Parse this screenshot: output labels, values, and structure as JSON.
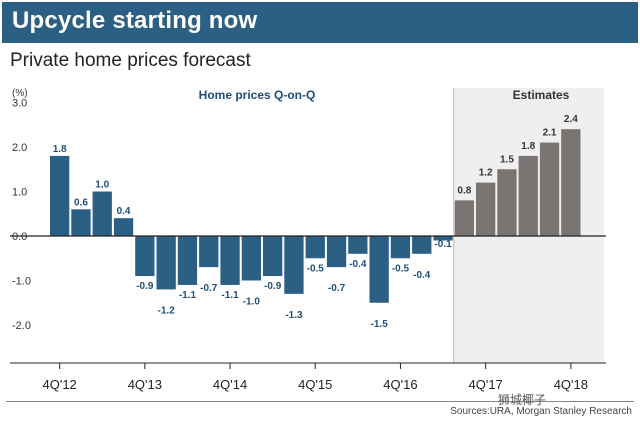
{
  "header": {
    "banner_title": "Upcycle starting now",
    "subtitle": "Private home prices forecast"
  },
  "footer": {
    "sources": "Sources:URA, Morgan Stanley Research",
    "watermark": "狮城椰子"
  },
  "colors": {
    "banner": "#2c5f84",
    "actual_bar": "#2c5f84",
    "actual_label": "#1f4e79",
    "estimate_bar": "#7a7573",
    "estimate_shade": "#efefef"
  },
  "chart_data": {
    "type": "bar",
    "y_unit_label": "(%)",
    "ylim": [
      -2.8,
      3.0
    ],
    "yticks": [
      {
        "value": 3.0,
        "label": "3.0"
      },
      {
        "value": 2.0,
        "label": "2.0"
      },
      {
        "value": 1.0,
        "label": "1.0"
      },
      {
        "value": 0.0,
        "label": "0.0"
      },
      {
        "value": -1.0,
        "label": "-1.0"
      },
      {
        "value": -2.0,
        "label": "-2.0"
      }
    ],
    "series": [
      {
        "name": "Home prices Q-on-Q",
        "values": [
          1.8,
          0.6,
          1.0,
          0.4,
          -0.9,
          -1.2,
          -1.1,
          -0.7,
          -1.1,
          -1.0,
          -0.9,
          -1.3,
          -0.5,
          -0.7,
          -0.4,
          -1.5,
          -0.5,
          -0.4,
          -0.1
        ],
        "labels": [
          "1.8",
          "0.6",
          "1.0",
          "0.4",
          "-0.9",
          "-1.2",
          "-1.1",
          "-0.7",
          "-1.1",
          "-1.0",
          "-0.9",
          "-1.3",
          "-0.5",
          "-0.7",
          "-0.4",
          "-1.5",
          "-0.5",
          "-0.4",
          "-0.1"
        ]
      },
      {
        "name": "Estimates",
        "values": [
          0.8,
          1.2,
          1.5,
          1.8,
          2.1,
          2.4
        ],
        "labels": [
          "0.8",
          "1.2",
          "1.5",
          "1.8",
          "2.1",
          "2.4"
        ]
      }
    ],
    "x_tick_labels": [
      {
        "index": 0,
        "label": "4Q'12"
      },
      {
        "index": 4,
        "label": "4Q'13"
      },
      {
        "index": 8,
        "label": "4Q'14"
      },
      {
        "index": 12,
        "label": "4Q'15"
      },
      {
        "index": 16,
        "label": "4Q'16"
      },
      {
        "index": 20,
        "label": "4Q'17"
      },
      {
        "index": 24,
        "label": "4Q'18"
      }
    ],
    "legend": {
      "actual_title": "Home prices Q-on-Q",
      "estimate_title": "Estimates"
    }
  }
}
